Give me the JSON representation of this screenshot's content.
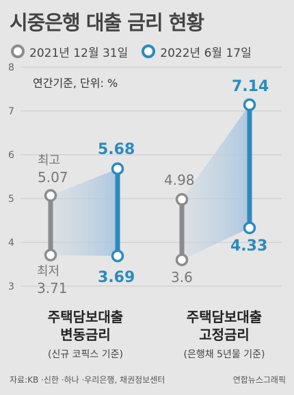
{
  "title": "시중은행 대출 금리 현황",
  "unit_note": "연간기준, 단위: %",
  "source": "자료:KB ·신한 ·하나 ·우리은행, 채권정보센터",
  "credit": "연합뉴스그래픽",
  "chart_data": {
    "type": "dumbbell",
    "ylim": [
      3,
      8
    ],
    "yticks": [
      "3",
      "4",
      "5",
      "6",
      "7",
      "8"
    ],
    "grid": true,
    "legend_position": "top",
    "series": [
      {
        "name": "2021년 12월 31일",
        "color": "#8c8c8c"
      },
      {
        "name": "2022년 6월 17일",
        "color": "#2a8bbf"
      }
    ],
    "groups": [
      {
        "label_line1": "주택담보대출",
        "label_line2": "변동금리",
        "note": "(신규 코픽스 기준)",
        "old": {
          "high": 5.07,
          "low": 3.71,
          "high_label": "5.07",
          "low_label": "3.71"
        },
        "new": {
          "high": 5.68,
          "low": 3.69,
          "high_label": "5.68",
          "low_label": "3.69"
        },
        "high_tag": "최고",
        "low_tag": "최저"
      },
      {
        "label_line1": "주택담보대출",
        "label_line2": "고정금리",
        "note": "(은행채 5년물 기준)",
        "old": {
          "high": 4.98,
          "low": 3.6,
          "high_label": "4.98",
          "low_label": "3.6"
        },
        "new": {
          "high": 7.14,
          "low": 4.33,
          "high_label": "7.14",
          "low_label": "4.33"
        }
      }
    ]
  }
}
